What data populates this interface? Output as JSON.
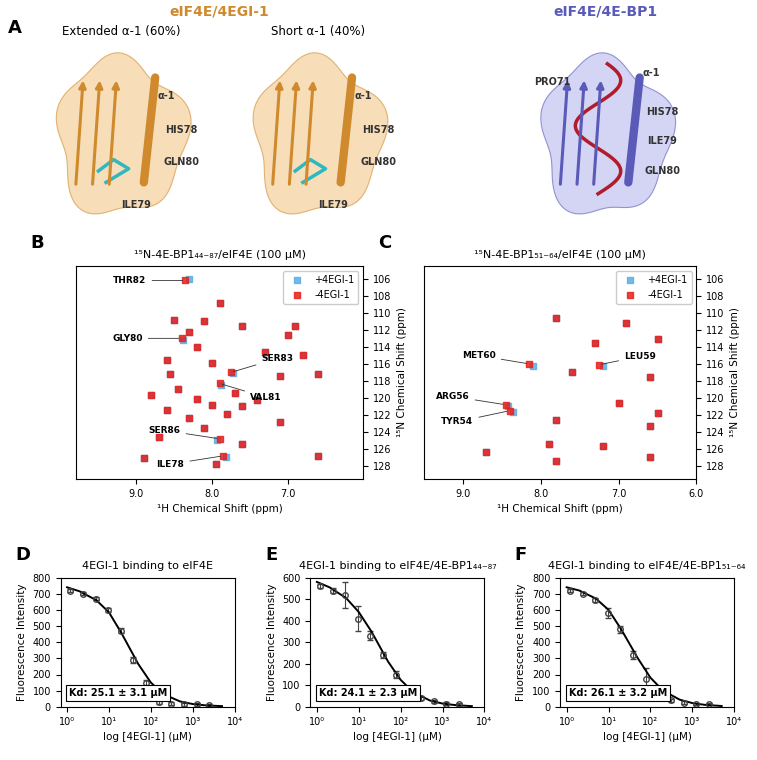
{
  "panel_a": {
    "panel": "A",
    "groups": [
      {
        "title": "eIF4E/4EGI-1",
        "color": "#d08a2e",
        "fill": "#f3c98b",
        "structures": [
          {
            "subtitle": "Extended α-1 (60%)",
            "labels": [
              "α-1",
              "HIS78",
              "GLN80",
              "ILE79"
            ]
          },
          {
            "subtitle": "Short α-1 (40%)",
            "labels": [
              "α-1",
              "HIS78",
              "GLN80",
              "ILE79"
            ]
          }
        ]
      },
      {
        "title": "eIF4E/4E-BP1",
        "color": "#5a5ab8",
        "fill": "#b8b8ee",
        "structures": [
          {
            "labels": [
              "PRO71",
              "α-1",
              "HIS78",
              "ILE79",
              "GLN80"
            ]
          }
        ]
      }
    ]
  },
  "chart_data": [
    {
      "type": "scatter",
      "panel": "B",
      "title": "¹⁵N-4E-BP1₄₄₋₈₇/eIF4E (100 μM)",
      "x_label": "¹H Chemical Shift (ppm)",
      "y_label": "¹⁵N Chemical Shift (ppm)",
      "xlim": [
        9.8,
        6.0
      ],
      "xticks": [
        9.0,
        8.0,
        7.0
      ],
      "ylim": [
        129.5,
        104.5
      ],
      "yticks": [
        106,
        108,
        110,
        112,
        114,
        116,
        118,
        120,
        122,
        124,
        126,
        128
      ],
      "legend": "upper right",
      "marker": "square",
      "series": [
        {
          "name": "+4EGI-1",
          "color": "#5aaee6",
          "x": [
            8.3,
            7.9,
            8.5,
            8.1,
            7.6,
            8.3,
            7.0,
            8.38,
            8.2,
            7.3,
            6.8,
            6.6,
            8.6,
            8.0,
            7.72,
            7.7,
            8.55,
            7.1,
            7.88,
            8.45,
            7.6,
            8.8,
            8.2,
            7.4,
            8.0,
            8.6,
            7.8,
            8.3,
            7.1,
            8.1,
            7.93,
            8.7,
            7.6,
            7.82,
            8.9,
            6.6,
            7.95,
            6.9
          ],
          "values": [
            106.0,
            108.9,
            110.8,
            111.0,
            111.5,
            112.3,
            112.6,
            113.2,
            114.0,
            114.6,
            114.9,
            117.2,
            115.6,
            115.9,
            117.1,
            119.4,
            117.2,
            117.4,
            118.5,
            118.9,
            121.0,
            119.6,
            120.1,
            120.3,
            120.8,
            121.4,
            121.9,
            122.3,
            122.8,
            123.5,
            124.9,
            124.6,
            125.4,
            126.9,
            127.0,
            126.8,
            127.8,
            111.5
          ]
        },
        {
          "name": "-4EGI-1",
          "color": "#e8201c",
          "x": [
            8.35,
            7.9,
            8.5,
            8.1,
            7.6,
            8.3,
            7.0,
            8.4,
            8.2,
            7.3,
            6.8,
            6.6,
            8.6,
            8.0,
            7.75,
            7.7,
            8.55,
            7.1,
            7.9,
            8.45,
            7.6,
            8.8,
            8.2,
            7.4,
            8.0,
            8.6,
            7.8,
            8.3,
            7.1,
            8.1,
            7.9,
            8.7,
            7.6,
            7.85,
            8.9,
            6.6,
            7.95,
            6.9
          ],
          "values": [
            106.2,
            108.9,
            110.8,
            111.0,
            111.5,
            112.3,
            112.6,
            113.0,
            114.0,
            114.6,
            114.9,
            117.2,
            115.6,
            115.9,
            117.0,
            119.4,
            117.2,
            117.4,
            118.3,
            118.9,
            121.0,
            119.6,
            120.1,
            120.3,
            120.8,
            121.4,
            121.9,
            122.3,
            122.8,
            123.5,
            124.8,
            124.6,
            125.4,
            126.8,
            127.0,
            126.8,
            127.8,
            111.5
          ]
        }
      ],
      "annotations": [
        {
          "text": "THR82",
          "x": 8.35,
          "y": 106.2
        },
        {
          "text": "GLY80",
          "x": 8.4,
          "y": 113.0
        },
        {
          "text": "SER83",
          "x": 7.75,
          "y": 117.0
        },
        {
          "text": "VAL81",
          "x": 7.9,
          "y": 118.3
        },
        {
          "text": "SER86",
          "x": 7.9,
          "y": 124.8
        },
        {
          "text": "ILE78",
          "x": 7.85,
          "y": 126.8
        }
      ]
    },
    {
      "type": "scatter",
      "panel": "C",
      "title": "¹⁵N-4E-BP1₅₁₋₆₄/eIF4E (100 μM)",
      "x_label": "¹H Chemical Shift (ppm)",
      "y_label": "¹⁵N Chemical Shift (ppm)",
      "xlim": [
        9.5,
        6.0
      ],
      "xticks": [
        9.0,
        8.0,
        7.0,
        6.0
      ],
      "ylim": [
        129.5,
        104.5
      ],
      "yticks": [
        106,
        108,
        110,
        112,
        114,
        116,
        118,
        120,
        122,
        124,
        126,
        128
      ],
      "legend": "upper right",
      "marker": "square",
      "series": [
        {
          "name": "+4EGI-1",
          "color": "#5aaee6",
          "x": [
            7.8,
            6.9,
            6.5,
            7.3,
            8.1,
            7.2,
            7.6,
            6.6,
            8.42,
            8.36,
            7.0,
            6.5,
            7.8,
            6.6,
            7.9,
            7.2,
            7.8,
            6.6,
            8.7
          ],
          "values": [
            110.6,
            111.2,
            113.1,
            113.5,
            116.2,
            116.3,
            117.0,
            117.5,
            120.9,
            121.7,
            120.6,
            121.8,
            122.6,
            123.3,
            125.4,
            125.6,
            127.4,
            126.9,
            126.3
          ]
        },
        {
          "name": "-4EGI-1",
          "color": "#e8201c",
          "x": [
            7.8,
            6.9,
            6.5,
            7.3,
            8.15,
            7.25,
            7.6,
            6.6,
            8.45,
            8.4,
            7.0,
            6.5,
            7.8,
            6.6,
            7.9,
            7.2,
            7.8,
            6.6,
            8.7
          ],
          "values": [
            110.6,
            111.2,
            113.1,
            113.5,
            116.0,
            116.1,
            117.0,
            117.5,
            120.8,
            121.5,
            120.6,
            121.8,
            122.6,
            123.3,
            125.4,
            125.6,
            127.4,
            126.9,
            126.3
          ]
        }
      ],
      "annotations": [
        {
          "text": "MET60",
          "x": 8.15,
          "y": 116.0
        },
        {
          "text": "LEU59",
          "x": 7.25,
          "y": 116.1
        },
        {
          "text": "ARG56",
          "x": 8.45,
          "y": 120.8
        },
        {
          "text": "TYR54",
          "x": 8.4,
          "y": 121.5
        }
      ]
    },
    {
      "type": "scatter",
      "panel": "D",
      "title": "4EGI-1 binding to eIF4E",
      "x_label": "log [4EGI-1] (μM)",
      "y_label": "Fluorescence Intensity",
      "log": "x",
      "xlim": [
        0.7,
        10000
      ],
      "xticks": [
        {
          "value": 1,
          "label": "10⁰"
        },
        {
          "value": 10,
          "label": "10¹"
        },
        {
          "value": 100,
          "label": "10²"
        },
        {
          "value": 1000,
          "label": "10³"
        },
        {
          "value": 10000,
          "label": "10⁴"
        }
      ],
      "ylim": [
        0,
        800
      ],
      "yticks": [
        0,
        100,
        200,
        300,
        400,
        500,
        600,
        700,
        800
      ],
      "annotations": [
        {
          "text": "Kd: 25.1 ± 3.1 μM"
        }
      ],
      "series": [
        {
          "type": "scatter",
          "marker": "circle",
          "color": "#444444",
          "x": [
            1.2,
            2.4,
            4.8,
            9.6,
            19,
            38,
            77,
            154,
            307,
            614,
            1229,
            2458
          ],
          "values": [
            720,
            700,
            670,
            600,
            470,
            290,
            150,
            30,
            20,
            15,
            15,
            10
          ],
          "errors": [
            10,
            10,
            10,
            12,
            15,
            20,
            15,
            10,
            8,
            8,
            8,
            8
          ]
        },
        {
          "type": "line",
          "color": "#000000",
          "x": [
            1,
            2,
            5,
            10,
            20,
            50,
            100,
            200,
            500,
            1000,
            2000,
            5000
          ],
          "values": [
            740,
            715,
            660,
            585,
            455,
            265,
            150,
            78,
            33,
            17,
            9,
            4
          ]
        }
      ]
    },
    {
      "type": "scatter",
      "panel": "E",
      "title": "4EGI-1 binding to eIF4E/4E-BP1₄₄₋₈₇",
      "x_label": "log [4EGI-1] (μM)",
      "y_label": "Fluorescence Intensity",
      "log": "x",
      "xlim": [
        0.7,
        10000
      ],
      "xticks": [
        {
          "value": 1,
          "label": "10⁰"
        },
        {
          "value": 10,
          "label": "10¹"
        },
        {
          "value": 100,
          "label": "10²"
        },
        {
          "value": 1000,
          "label": "10³"
        },
        {
          "value": 10000,
          "label": "10⁴"
        }
      ],
      "ylim": [
        0,
        600
      ],
      "yticks": [
        0,
        100,
        200,
        300,
        400,
        500,
        600
      ],
      "annotations": [
        {
          "text": "Kd: 24.1 ± 2.3 μM"
        }
      ],
      "series": [
        {
          "type": "scatter",
          "marker": "circle",
          "color": "#444444",
          "x": [
            1.2,
            2.4,
            4.8,
            9.6,
            19,
            38,
            77,
            154,
            307,
            614,
            1229,
            2458
          ],
          "values": [
            560,
            540,
            520,
            410,
            330,
            240,
            150,
            80,
            40,
            25,
            15,
            12
          ],
          "errors": [
            10,
            10,
            60,
            60,
            20,
            15,
            15,
            10,
            8,
            6,
            6,
            6
          ]
        },
        {
          "type": "line",
          "color": "#000000",
          "x": [
            1,
            2,
            5,
            10,
            20,
            50,
            100,
            200,
            500,
            1000,
            2000,
            5000
          ],
          "values": [
            580,
            555,
            505,
            440,
            350,
            210,
            125,
            68,
            29,
            15,
            8,
            3
          ]
        }
      ]
    },
    {
      "type": "scatter",
      "panel": "F",
      "title": "4EGI-1 binding to eIF4E/4E-BP1₅₁₋₆₄",
      "x_label": "log [4EGI-1] (μM)",
      "y_label": "Fluorescence Intensity",
      "log": "x",
      "xlim": [
        0.7,
        10000
      ],
      "xticks": [
        {
          "value": 1,
          "label": "10⁰"
        },
        {
          "value": 10,
          "label": "10¹"
        },
        {
          "value": 100,
          "label": "10²"
        },
        {
          "value": 1000,
          "label": "10³"
        },
        {
          "value": 10000,
          "label": "10⁴"
        }
      ],
      "ylim": [
        0,
        800
      ],
      "yticks": [
        0,
        100,
        200,
        300,
        400,
        500,
        600,
        700,
        800
      ],
      "annotations": [
        {
          "text": "Kd: 26.1 ± 3.2 μM"
        }
      ],
      "series": [
        {
          "type": "scatter",
          "marker": "circle",
          "color": "#444444",
          "x": [
            1.2,
            2.4,
            4.8,
            9.6,
            19,
            38,
            77,
            154,
            307,
            614,
            1229,
            2458
          ],
          "values": [
            720,
            700,
            660,
            580,
            480,
            320,
            170,
            90,
            40,
            25,
            20,
            15
          ],
          "errors": [
            10,
            10,
            12,
            30,
            20,
            25,
            70,
            20,
            10,
            8,
            6,
            6
          ]
        },
        {
          "type": "line",
          "color": "#000000",
          "x": [
            1,
            2,
            5,
            10,
            20,
            50,
            100,
            200,
            500,
            1000,
            2000,
            5000
          ],
          "values": [
            740,
            720,
            670,
            600,
            480,
            300,
            180,
            100,
            44,
            23,
            12,
            5
          ]
        }
      ]
    }
  ]
}
